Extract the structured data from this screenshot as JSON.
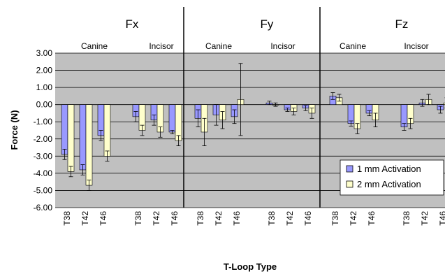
{
  "chart_data": {
    "type": "bar",
    "ylabel": "Force (N)",
    "xlabel": "T-Loop Type",
    "ylim": [
      -6,
      3
    ],
    "yticks": [
      "3.00",
      "2.00",
      "1.00",
      "0.00",
      "-1.00",
      "-2.00",
      "-3.00",
      "-4.00",
      "-5.00",
      "-6.00"
    ],
    "grid": true,
    "legend_position": "right",
    "colors": {
      "plot_bg": "#c0c0c0",
      "series1": "#9999ff",
      "series2": "#ffffcc",
      "grid": "#000000"
    },
    "panels": [
      {
        "title": "Fx",
        "groups": [
          "Canine",
          "Incisor"
        ]
      },
      {
        "title": "Fy",
        "groups": [
          "Canine",
          "Incisor"
        ]
      },
      {
        "title": "Fz",
        "groups": [
          "Canine",
          "Incisor"
        ]
      }
    ],
    "categories": [
      "T38",
      "T42",
      "T46",
      "T38",
      "T42",
      "T46",
      "T38",
      "T42",
      "T46",
      "T38",
      "T42",
      "T46",
      "T38",
      "T42",
      "T46",
      "T38",
      "T42",
      "T46"
    ],
    "series": [
      {
        "name": "1 mm Activation",
        "values": [
          -2.9,
          -3.8,
          -1.8,
          -0.7,
          -0.9,
          -1.6,
          -0.8,
          -0.6,
          -0.7,
          0.1,
          -0.3,
          -0.2,
          0.5,
          -1.1,
          -0.5,
          -1.3,
          0.1,
          -0.3
        ],
        "errors": [
          0.3,
          0.3,
          0.3,
          0.3,
          0.3,
          0.1,
          0.5,
          0.6,
          0.4,
          0.1,
          0.1,
          0.15,
          0.2,
          0.15,
          0.15,
          0.2,
          0.2,
          0.2
        ]
      },
      {
        "name": "2 mm Activation",
        "values": [
          -3.9,
          -4.7,
          -3.0,
          -1.5,
          -1.6,
          -2.1,
          -1.6,
          -0.9,
          0.3,
          0.0,
          -0.4,
          -0.5,
          0.4,
          -1.4,
          -0.9,
          -1.1,
          0.3,
          0.1
        ],
        "errors": [
          0.3,
          0.3,
          0.3,
          0.3,
          0.3,
          0.3,
          0.8,
          0.5,
          2.1,
          0.1,
          0.2,
          0.3,
          0.2,
          0.3,
          0.4,
          0.3,
          0.3,
          0.3
        ]
      }
    ]
  }
}
